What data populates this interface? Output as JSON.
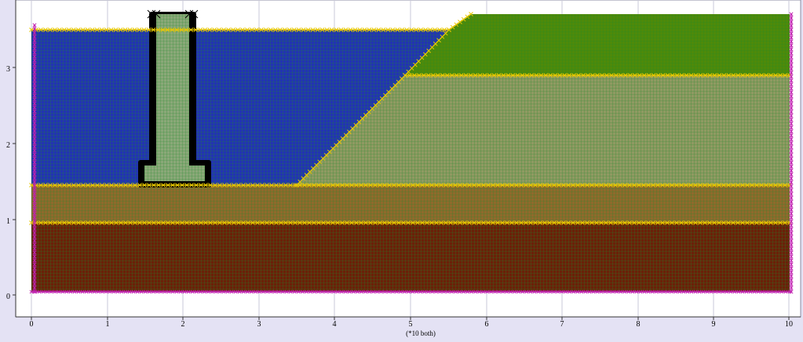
{
  "x_axis": {
    "ticks": [
      "0",
      "1",
      "2",
      "3",
      "4",
      "5",
      "6",
      "7",
      "8",
      "9",
      "10"
    ],
    "note": "(*10 both)"
  },
  "y_axis": {
    "ticks": [
      "0",
      "1",
      "2",
      "3"
    ]
  },
  "colors": {
    "background": "#e4e2f4",
    "plot_background": "#ffffff",
    "water": "#2233b3",
    "top_soil": "#4e8a0a",
    "middle_soil": "#8f9a62",
    "sand_layer": "#8f6a2c",
    "bottom_soil": "#6b2008",
    "wall": "#8aa878",
    "mesh_line": "#1f8a2a",
    "boundary_marker": "#e8c800",
    "wall_marker": "#000000",
    "side_marker": "#c020b0"
  },
  "icons": {
    "boundary_marker": "cross-marker-icon"
  }
}
